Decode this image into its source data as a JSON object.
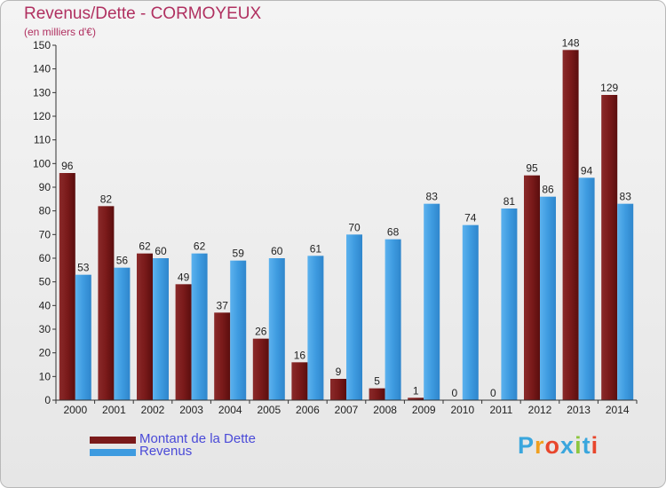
{
  "header": {
    "title": "Revenus/Dette - CORMOYEUX",
    "subtitle": "(en milliers d'€)"
  },
  "logo": {
    "text": "Proxiti",
    "colors": [
      "#3aa6dd",
      "#f0a020",
      "#e8462c",
      "#3aa6dd",
      "#8dc63f",
      "#3aa6dd",
      "#e8462c"
    ]
  },
  "colors": {
    "dette": "#7a1a1a",
    "revenus": "#3e9be0",
    "axis": "#333333",
    "grid": "#d8d8d8",
    "title": "#b03060",
    "legend_text": "#4a4ad8"
  },
  "chart_data": {
    "type": "bar",
    "title": "Revenus/Dette - CORMOYEUX",
    "subtitle": "(en milliers d'€)",
    "categories": [
      "2000",
      "2001",
      "2002",
      "2003",
      "2004",
      "2005",
      "2006",
      "2007",
      "2008",
      "2009",
      "2010",
      "2011",
      "2012",
      "2013",
      "2014"
    ],
    "series": [
      {
        "name": "Montant de la Dette",
        "values": [
          96,
          82,
          62,
          49,
          37,
          26,
          16,
          9,
          5,
          1,
          0,
          0,
          95,
          148,
          129
        ]
      },
      {
        "name": "Revenus",
        "values": [
          53,
          56,
          60,
          62,
          59,
          60,
          61,
          70,
          68,
          83,
          74,
          81,
          86,
          94,
          83
        ]
      }
    ],
    "ylim": [
      0,
      150
    ],
    "yticks": [
      0,
      10,
      20,
      30,
      40,
      50,
      60,
      70,
      80,
      90,
      100,
      110,
      120,
      130,
      140,
      150
    ],
    "grid": false,
    "legend_position": "bottom-left"
  }
}
